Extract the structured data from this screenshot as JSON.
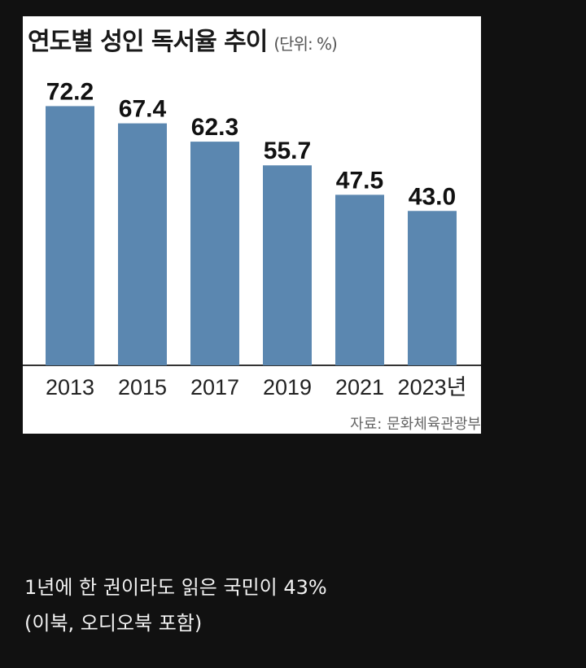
{
  "chart_data": {
    "type": "bar",
    "title": "연도별 성인 독서율 추이",
    "unit_label": "(단위: %)",
    "categories": [
      "2013",
      "2015",
      "2017",
      "2019",
      "2021",
      "2023년"
    ],
    "values": [
      72.2,
      67.4,
      62.3,
      55.7,
      47.5,
      43.0
    ],
    "value_labels": [
      "72.2",
      "67.4",
      "62.3",
      "55.7",
      "47.5",
      "43.0"
    ],
    "ylim": [
      0,
      80
    ],
    "grid": false,
    "bar_color": "#5b87b0",
    "source": "자료: 문화체육관광부"
  },
  "caption": {
    "line1": "1년에 한 권이라도 읽은 국민이 43%",
    "line2": "(이북, 오디오북 포함)"
  }
}
